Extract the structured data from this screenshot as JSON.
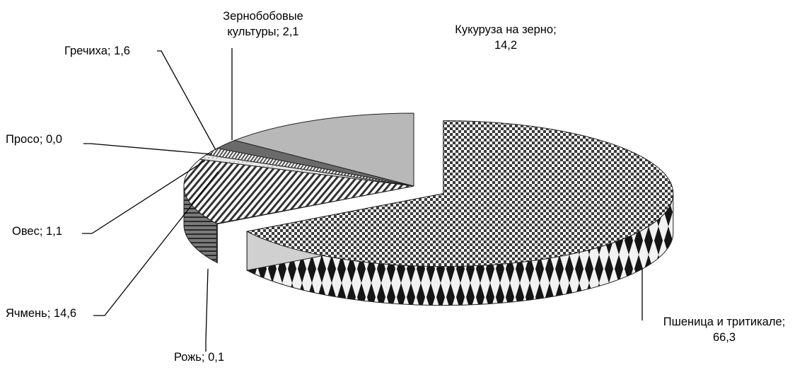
{
  "chart_data": {
    "type": "pie",
    "title": "",
    "slices": [
      {
        "name": "Пшеница и тритикале",
        "value": 66.3,
        "label": "Пшеница и тритикале;\n66,3",
        "pattern": "diamond-check"
      },
      {
        "name": "Рожь",
        "value": 0.1,
        "label": "Рожь; 0,1",
        "pattern": "grey-dark"
      },
      {
        "name": "Ячмень",
        "value": 14.6,
        "label": "Ячмень; 14,6",
        "pattern": "diagonal-stripes"
      },
      {
        "name": "Овес",
        "value": 1.1,
        "label": "Овес; 1,1",
        "pattern": "light-grey"
      },
      {
        "name": "Просо",
        "value": 0.0,
        "label": "Просо; 0,0",
        "pattern": "white"
      },
      {
        "name": "Гречиха",
        "value": 1.6,
        "label": "Гречиха; 1,6",
        "pattern": "dense-stripes"
      },
      {
        "name": "Зернобобовые культуры",
        "value": 2.1,
        "label": "Зернобобовые\nкультуры; 2,1",
        "pattern": "dark-grey"
      },
      {
        "name": "Кукуруза на зерно",
        "value": 14.2,
        "label": "Кукуруза на зерно;\n14,2",
        "pattern": "solid-grey"
      }
    ],
    "exploded_slice": "Пшеница и тритикале",
    "legend": "none"
  }
}
